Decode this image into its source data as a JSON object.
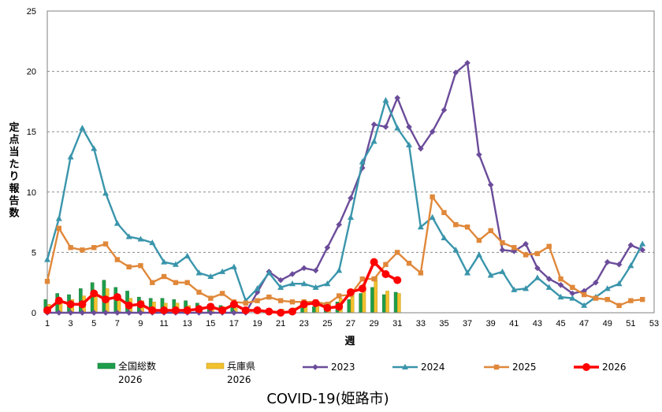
{
  "chart_data": {
    "type": "bar",
    "title": "COVID-19(姫路市)",
    "xlabel": "週",
    "ylabel": "定点当たり報告数",
    "ylim": [
      0,
      25
    ],
    "y_ticks": [
      0,
      5,
      10,
      15,
      20,
      25
    ],
    "x_range": [
      1,
      53
    ],
    "x_ticks": [
      1,
      3,
      5,
      7,
      9,
      11,
      13,
      15,
      17,
      19,
      21,
      23,
      25,
      27,
      29,
      31,
      33,
      35,
      37,
      39,
      41,
      43,
      45,
      47,
      49,
      51,
      53
    ],
    "grid": "horizontal dashed",
    "legend_position": "bottom",
    "bars": [
      {
        "name": "全国総数",
        "name_line2": "2026",
        "color": "#1e9e4a",
        "x": [
          1,
          2,
          3,
          4,
          5,
          6,
          7,
          8,
          9,
          10,
          11,
          12,
          13,
          14,
          15,
          16,
          17,
          18,
          19,
          20,
          21,
          22,
          23,
          24,
          25,
          26,
          27,
          28,
          29,
          30,
          31
        ],
        "values": [
          1.1,
          1.6,
          1.5,
          2.0,
          2.5,
          2.7,
          2.1,
          1.8,
          1.3,
          1.2,
          1.2,
          1.1,
          1.0,
          0.8,
          0.7,
          0.6,
          0.5,
          0.3,
          0.2,
          0.2,
          0.2,
          0.3,
          0.4,
          0.5,
          0.7,
          0.9,
          1.1,
          1.6,
          2.1,
          1.5,
          1.7
        ]
      },
      {
        "name": "兵庫県",
        "name_line2": "2026",
        "color": "#f2c12e",
        "x": [
          1,
          2,
          3,
          4,
          5,
          6,
          7,
          8,
          9,
          10,
          11,
          12,
          13,
          14,
          15,
          16,
          17,
          18,
          19,
          20,
          21,
          22,
          23,
          24,
          25,
          26,
          27,
          28,
          29,
          30,
          31
        ],
        "values": [
          0.7,
          1.1,
          1.1,
          1.4,
          1.7,
          2.0,
          1.5,
          1.2,
          1.0,
          0.9,
          0.8,
          0.8,
          0.6,
          0.5,
          0.5,
          0.5,
          0.4,
          0.3,
          0.2,
          0.2,
          0.3,
          0.4,
          0.5,
          0.6,
          0.8,
          1.2,
          1.6,
          2.4,
          3.0,
          1.8,
          1.6
        ]
      }
    ],
    "series": [
      {
        "name": "2023",
        "color": "#6b4c9a",
        "marker": "diamond",
        "x": [
          1,
          2,
          3,
          4,
          5,
          6,
          7,
          8,
          9,
          10,
          11,
          12,
          13,
          14,
          15,
          16,
          17,
          18,
          19,
          20,
          21,
          22,
          23,
          24,
          25,
          26,
          27,
          28,
          29,
          30,
          31,
          32,
          33,
          34,
          35,
          36,
          37,
          38,
          39,
          40,
          41,
          42,
          43,
          44,
          45,
          46,
          47,
          48,
          49,
          50,
          51,
          52
        ],
        "values": [
          0,
          0,
          0,
          0,
          0,
          0,
          0,
          0,
          0,
          0,
          0,
          0,
          0,
          0,
          0,
          0,
          0,
          0,
          1.7,
          3.4,
          2.7,
          3.2,
          3.7,
          3.5,
          5.4,
          7.3,
          9.5,
          12.0,
          15.6,
          15.4,
          17.8,
          15.4,
          13.6,
          15.0,
          16.8,
          19.9,
          20.7,
          13.1,
          10.6,
          5.2,
          5.1,
          5.7,
          3.7,
          2.8,
          2.3,
          1.6,
          1.8,
          2.5,
          4.2,
          4.0,
          5.6,
          5.2
        ]
      },
      {
        "name": "2024",
        "color": "#3a95ab",
        "marker": "triangle",
        "x": [
          1,
          2,
          3,
          4,
          5,
          6,
          7,
          8,
          9,
          10,
          11,
          12,
          13,
          14,
          15,
          16,
          17,
          18,
          19,
          20,
          21,
          22,
          23,
          24,
          25,
          26,
          27,
          28,
          29,
          30,
          31,
          32,
          33,
          34,
          35,
          36,
          37,
          38,
          39,
          40,
          41,
          42,
          43,
          44,
          45,
          46,
          47,
          48,
          49,
          50,
          51,
          52
        ],
        "values": [
          4.4,
          7.8,
          12.9,
          15.3,
          13.6,
          9.9,
          7.4,
          6.3,
          6.1,
          5.8,
          4.2,
          4.0,
          4.7,
          3.3,
          3.0,
          3.4,
          3.8,
          1.0,
          2.0,
          3.3,
          2.1,
          2.4,
          2.4,
          2.1,
          2.4,
          3.5,
          7.9,
          12.5,
          14.2,
          17.6,
          15.3,
          13.9,
          7.1,
          7.9,
          6.2,
          5.2,
          3.3,
          4.8,
          3.1,
          3.4,
          1.9,
          2.0,
          2.9,
          2.1,
          1.3,
          1.2,
          0.6,
          1.3,
          2.0,
          2.4,
          3.9,
          5.7
        ]
      },
      {
        "name": "2025",
        "color": "#e0883a",
        "marker": "square",
        "x": [
          1,
          2,
          3,
          4,
          5,
          6,
          7,
          8,
          9,
          10,
          11,
          12,
          13,
          14,
          15,
          16,
          17,
          18,
          19,
          20,
          21,
          22,
          23,
          24,
          25,
          26,
          27,
          28,
          29,
          30,
          31,
          32,
          33,
          34,
          35,
          36,
          37,
          38,
          39,
          40,
          41,
          42,
          43,
          44,
          45,
          46,
          47,
          48,
          49,
          50,
          51,
          52
        ],
        "values": [
          2.6,
          7.0,
          5.4,
          5.2,
          5.4,
          5.7,
          4.4,
          3.8,
          3.9,
          2.5,
          3.0,
          2.5,
          2.5,
          1.7,
          1.2,
          1.6,
          0.9,
          0.8,
          1.0,
          1.3,
          1.0,
          0.9,
          0.9,
          0.9,
          0.7,
          1.4,
          1.5,
          2.8,
          2.8,
          4.0,
          5.0,
          4.1,
          3.3,
          9.6,
          8.3,
          7.3,
          7.1,
          6.0,
          6.8,
          5.8,
          5.4,
          4.8,
          4.9,
          5.5,
          2.8,
          2.1,
          1.5,
          1.2,
          1.1,
          0.6,
          1.0,
          1.1
        ]
      },
      {
        "name": "2026",
        "color": "#ff0000",
        "marker": "circle",
        "x": [
          1,
          2,
          3,
          4,
          5,
          6,
          7,
          8,
          9,
          10,
          11,
          12,
          13,
          14,
          15,
          16,
          17,
          18,
          19,
          20,
          21,
          22,
          23,
          24,
          25,
          26,
          27,
          28,
          29,
          30,
          31
        ],
        "values": [
          0.2,
          1.0,
          0.7,
          0.7,
          1.6,
          1.1,
          1.3,
          0.6,
          0.7,
          0.2,
          0.2,
          0.2,
          0.2,
          0.3,
          0.5,
          0.2,
          0.7,
          0.2,
          0.2,
          0.1,
          0.0,
          0.1,
          0.7,
          0.8,
          0.4,
          0.5,
          1.7,
          2.0,
          4.2,
          3.2,
          2.7
        ]
      }
    ]
  }
}
